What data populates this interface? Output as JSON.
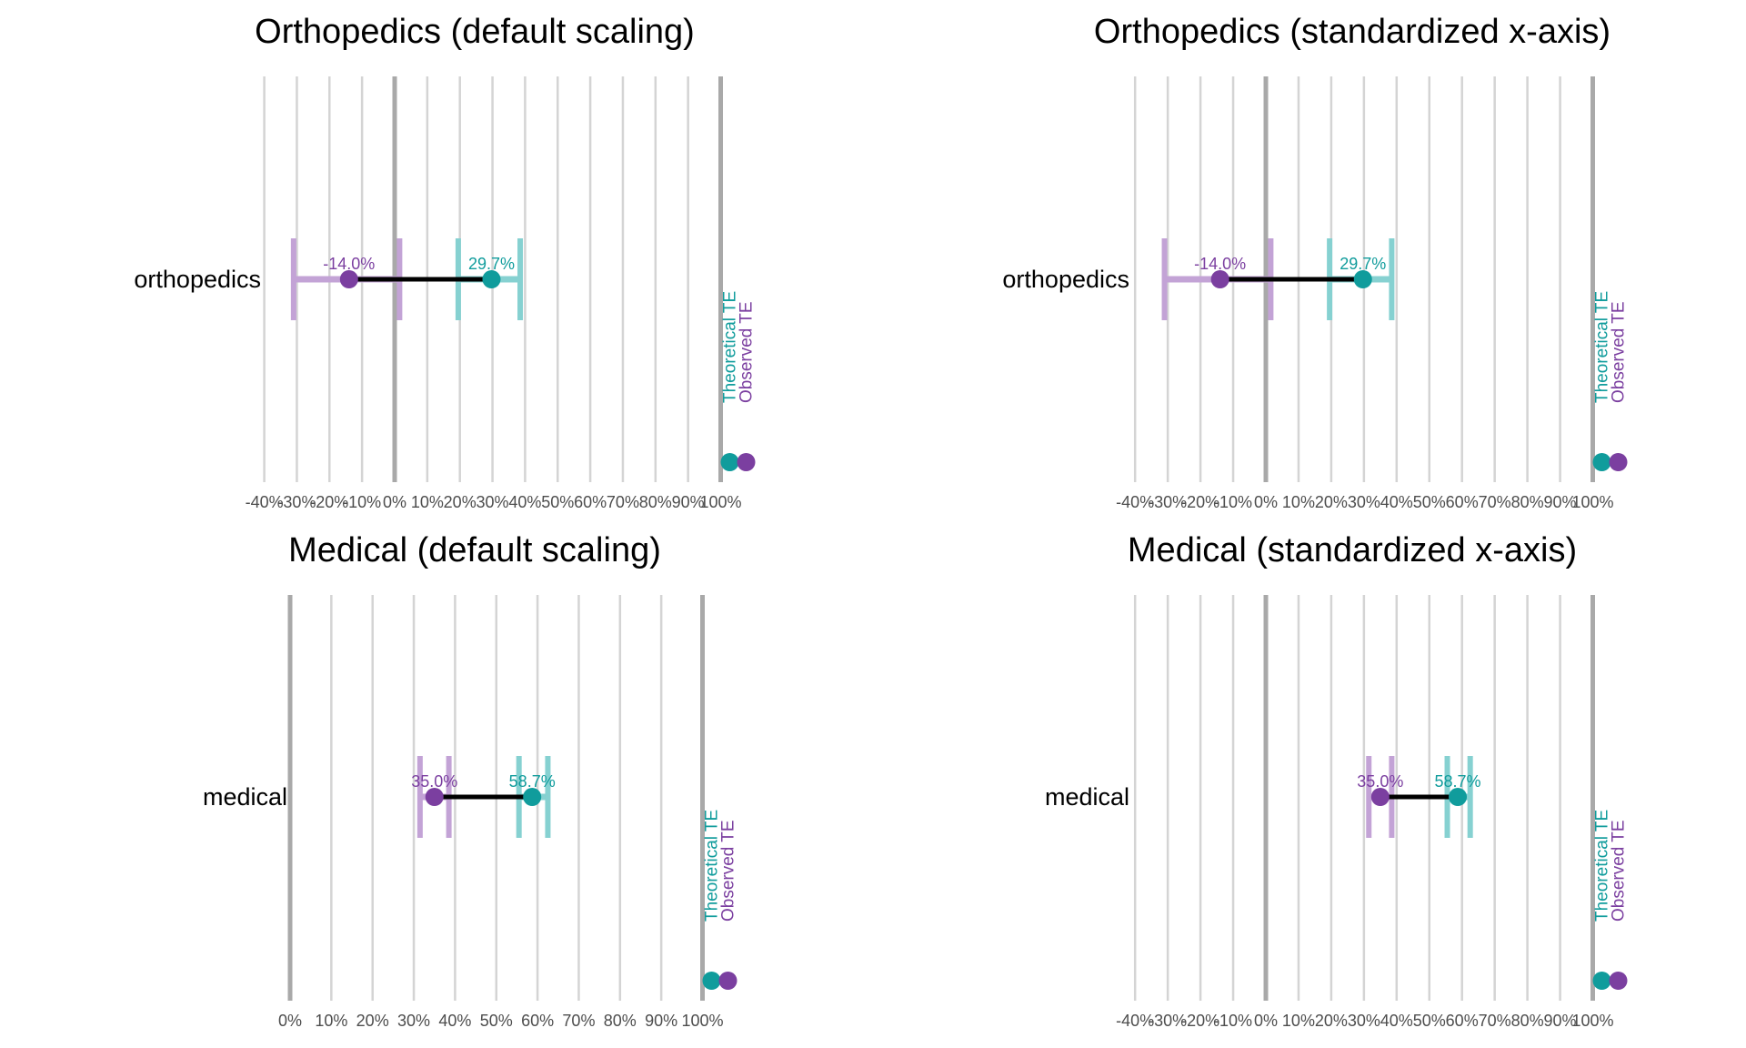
{
  "colors": {
    "theoretical": "#109c9c",
    "observed": "#7b3fa0",
    "theoretical_ci": "#86d1d1",
    "observed_ci": "#c3a3d6",
    "grid": "#d4d4d4",
    "ref_line": "#a9a9a9",
    "connector": "#000000"
  },
  "legend": {
    "theoretical_label": "Theoretical TE",
    "observed_label": "Observed TE"
  },
  "chart_data": [
    {
      "type": "dumbbell",
      "title": "Orthopedics (default scaling)",
      "category": "orthopedics",
      "xlim": [
        -40,
        100
      ],
      "ticks": [
        -40,
        -30,
        -20,
        -10,
        0,
        10,
        20,
        30,
        40,
        50,
        60,
        70,
        80,
        90,
        100
      ],
      "tick_labels": [
        "-40%",
        "-30%",
        "-20%",
        "-10%",
        "0%",
        "10%",
        "20%",
        "30%",
        "40%",
        "50%",
        "60%",
        "70%",
        "80%",
        "90%",
        "100%"
      ],
      "observed": {
        "value": -14.0,
        "ci": [
          -31,
          1.5
        ],
        "label": "-14.0%"
      },
      "theoretical": {
        "value": 29.7,
        "ci": [
          19.5,
          38.5
        ],
        "label": "29.7%"
      }
    },
    {
      "type": "dumbbell",
      "title": "Orthopedics (standardized x-axis)",
      "category": "orthopedics",
      "xlim": [
        -40,
        100
      ],
      "ticks": [
        -40,
        -30,
        -20,
        -10,
        0,
        10,
        20,
        30,
        40,
        50,
        60,
        70,
        80,
        90,
        100
      ],
      "tick_labels": [
        "-40%",
        "-30%",
        "-20%",
        "-10%",
        "0%",
        "10%",
        "20%",
        "30%",
        "40%",
        "50%",
        "60%",
        "70%",
        "80%",
        "90%",
        "100%"
      ],
      "observed": {
        "value": -14.0,
        "ci": [
          -31,
          1.5
        ],
        "label": "-14.0%"
      },
      "theoretical": {
        "value": 29.7,
        "ci": [
          19.5,
          38.5
        ],
        "label": "29.7%"
      }
    },
    {
      "type": "dumbbell",
      "title": "Medical (default scaling)",
      "category": "medical",
      "xlim": [
        0,
        100
      ],
      "ticks": [
        0,
        10,
        20,
        30,
        40,
        50,
        60,
        70,
        80,
        90,
        100
      ],
      "tick_labels": [
        "0%",
        "10%",
        "20%",
        "30%",
        "40%",
        "50%",
        "60%",
        "70%",
        "80%",
        "90%",
        "100%"
      ],
      "observed": {
        "value": 35.0,
        "ci": [
          31.5,
          38.5
        ],
        "label": "35.0%"
      },
      "theoretical": {
        "value": 58.7,
        "ci": [
          55.5,
          62.5
        ],
        "label": "58.7%"
      }
    },
    {
      "type": "dumbbell",
      "title": "Medical (standardized x-axis)",
      "category": "medical",
      "xlim": [
        -40,
        100
      ],
      "ticks": [
        -40,
        -30,
        -20,
        -10,
        0,
        10,
        20,
        30,
        40,
        50,
        60,
        70,
        80,
        90,
        100
      ],
      "tick_labels": [
        "-40%",
        "-30%",
        "-20%",
        "-10%",
        "0%",
        "10%",
        "20%",
        "30%",
        "40%",
        "50%",
        "60%",
        "70%",
        "80%",
        "90%",
        "100%"
      ],
      "observed": {
        "value": 35.0,
        "ci": [
          31.5,
          38.5
        ],
        "label": "35.0%"
      },
      "theoretical": {
        "value": 58.7,
        "ci": [
          55.5,
          62.5
        ],
        "label": "58.7%"
      }
    }
  ]
}
